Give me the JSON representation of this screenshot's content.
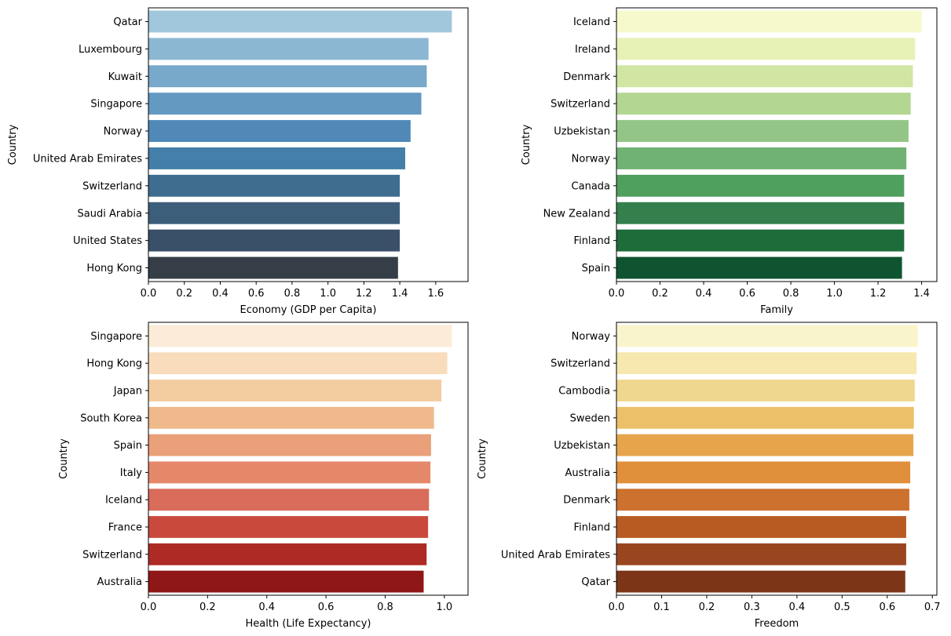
{
  "chart_data": [
    {
      "type": "bar",
      "orientation": "horizontal",
      "xlabel": "Economy (GDP per Capita)",
      "ylabel": "Country",
      "xlim": [
        0,
        1.78
      ],
      "xticks": [
        0.0,
        0.2,
        0.4,
        0.6,
        0.8,
        1.0,
        1.2,
        1.4,
        1.6
      ],
      "xtick_labels": [
        "0.0",
        "0.2",
        "0.4",
        "0.6",
        "0.8",
        "1.0",
        "1.2",
        "1.4",
        "1.6"
      ],
      "categories": [
        "Qatar",
        "Luxembourg",
        "Kuwait",
        "Singapore",
        "Norway",
        "United Arab Emirates",
        "Switzerland",
        "Saudi Arabia",
        "United States",
        "Hong Kong"
      ],
      "values": [
        1.69,
        1.56,
        1.55,
        1.52,
        1.46,
        1.43,
        1.4,
        1.4,
        1.4,
        1.39
      ],
      "colors": [
        "#a1c7dd",
        "#8cb7d2",
        "#78a8ca",
        "#6499c2",
        "#5089b7",
        "#447fa9",
        "#3e6d8f",
        "#3d5e7a",
        "#3a5068",
        "#353e47"
      ],
      "grid": false
    },
    {
      "type": "bar",
      "orientation": "horizontal",
      "xlabel": "Family",
      "ylabel": "Country",
      "xlim": [
        0,
        1.47
      ],
      "xticks": [
        0.0,
        0.2,
        0.4,
        0.6,
        0.8,
        1.0,
        1.2,
        1.4
      ],
      "xtick_labels": [
        "0.0",
        "0.2",
        "0.4",
        "0.6",
        "0.8",
        "1.0",
        "1.2",
        "1.4"
      ],
      "categories": [
        "Iceland",
        "Ireland",
        "Denmark",
        "Switzerland",
        "Uzbekistan",
        "Norway",
        "Canada",
        "New Zealand",
        "Finland",
        "Spain"
      ],
      "values": [
        1.4,
        1.37,
        1.36,
        1.35,
        1.34,
        1.33,
        1.32,
        1.32,
        1.32,
        1.31
      ],
      "colors": [
        "#f6f9cc",
        "#e6f1b6",
        "#d0e6a2",
        "#b3d692",
        "#93c686",
        "#70b273",
        "#4f9f5f",
        "#347f4c",
        "#1d6c3a",
        "#0e5431"
      ],
      "grid": false
    },
    {
      "type": "bar",
      "orientation": "horizontal",
      "xlabel": "Health (Life Expectancy)",
      "ylabel": "Country",
      "xlim": [
        0,
        1.08
      ],
      "xticks": [
        0.0,
        0.2,
        0.4,
        0.6,
        0.8,
        1.0
      ],
      "xtick_labels": [
        "0.0",
        "0.2",
        "0.4",
        "0.6",
        "0.8",
        "1.0"
      ],
      "categories": [
        "Singapore",
        "Hong Kong",
        "Japan",
        "South Korea",
        "Spain",
        "Italy",
        "Iceland",
        "France",
        "Switzerland",
        "Australia"
      ],
      "values": [
        1.025,
        1.01,
        0.99,
        0.965,
        0.955,
        0.953,
        0.948,
        0.945,
        0.94,
        0.93
      ],
      "colors": [
        "#fbebd8",
        "#f8dcbc",
        "#f3cca0",
        "#efb98b",
        "#eaa079",
        "#e5886a",
        "#d96c5a",
        "#c94a3d",
        "#ad2a25",
        "#8f1717"
      ],
      "grid": false
    },
    {
      "type": "bar",
      "orientation": "horizontal",
      "xlabel": "Freedom",
      "ylabel": "Country",
      "xlim": [
        0,
        0.71
      ],
      "xticks": [
        0.0,
        0.1,
        0.2,
        0.3,
        0.4,
        0.5,
        0.6,
        0.7
      ],
      "xtick_labels": [
        "0.0",
        "0.1",
        "0.2",
        "0.3",
        "0.4",
        "0.5",
        "0.6",
        "0.7"
      ],
      "categories": [
        "Norway",
        "Switzerland",
        "Cambodia",
        "Sweden",
        "Uzbekistan",
        "Australia",
        "Denmark",
        "Finland",
        "United Arab Emirates",
        "Qatar"
      ],
      "values": [
        0.668,
        0.665,
        0.661,
        0.659,
        0.658,
        0.651,
        0.649,
        0.642,
        0.642,
        0.64
      ],
      "colors": [
        "#f9f4cb",
        "#f6e8ae",
        "#f0d78e",
        "#ecc068",
        "#e6a54b",
        "#e08f3b",
        "#cd712e",
        "#b85b22",
        "#994620",
        "#7c3617"
      ],
      "grid": false
    }
  ]
}
